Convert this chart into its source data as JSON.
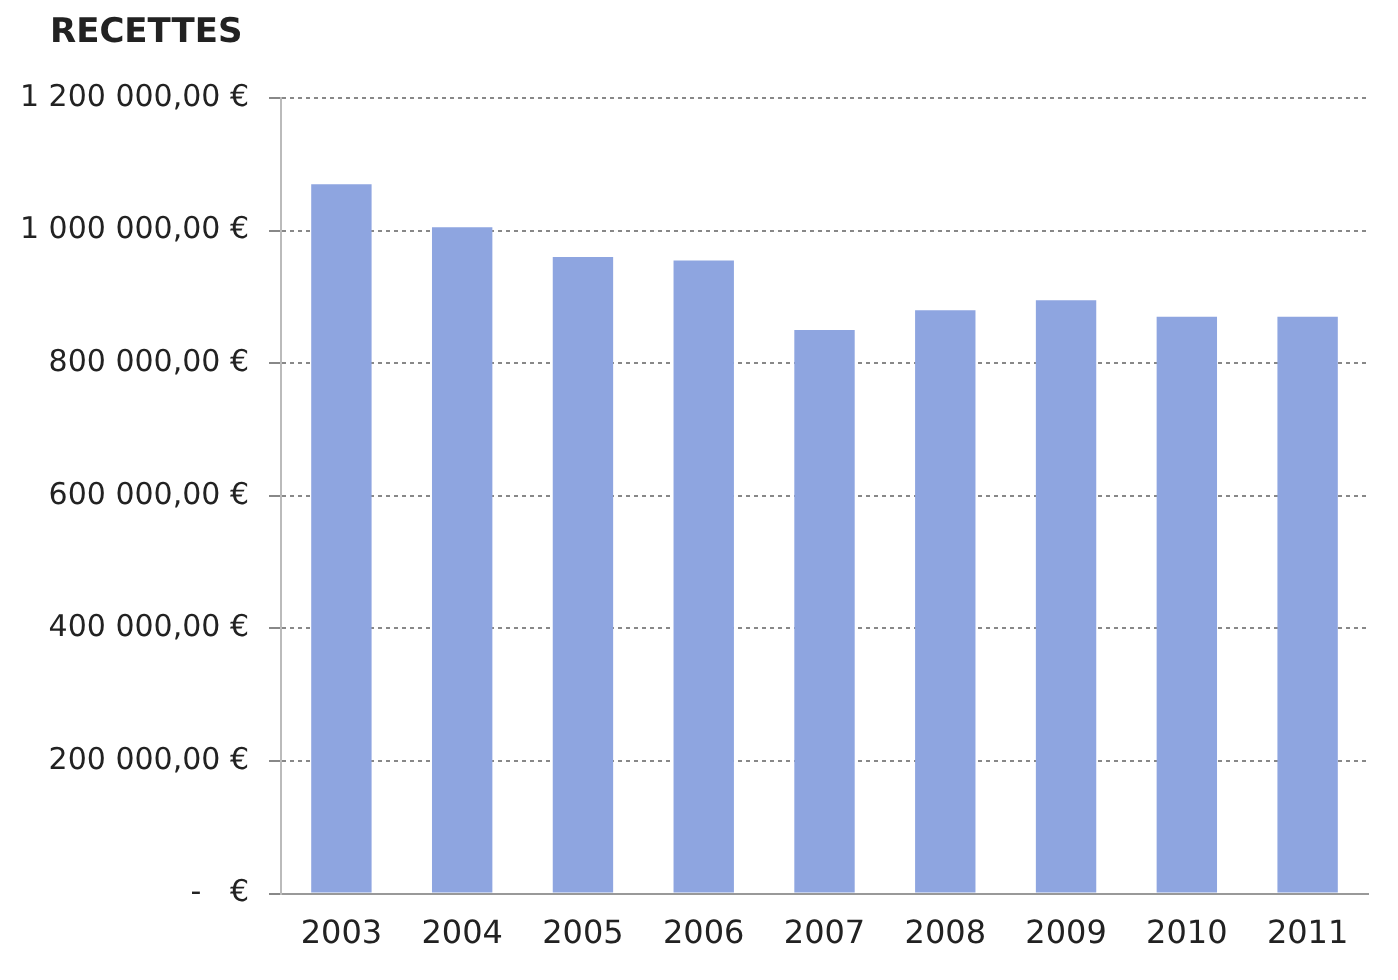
{
  "chart_data": {
    "type": "bar",
    "title": "RECETTES",
    "categories": [
      "2003",
      "2004",
      "2005",
      "2006",
      "2007",
      "2008",
      "2009",
      "2010",
      "2011"
    ],
    "values": [
      1070000,
      1005000,
      960000,
      955000,
      850000,
      880000,
      895000,
      870000,
      870000
    ],
    "color": "#8ea5e0",
    "ylim": [
      0,
      1200000
    ],
    "yticks": [
      {
        "value": 0,
        "label": "-   €"
      },
      {
        "value": 200000,
        "label": "200 000,00 €"
      },
      {
        "value": 400000,
        "label": "400 000,00 €"
      },
      {
        "value": 600000,
        "label": "600 000,00 €"
      },
      {
        "value": 800000,
        "label": "800 000,00 €"
      },
      {
        "value": 1000000,
        "label": "1 000 000,00 €"
      },
      {
        "value": 1200000,
        "label": "1 200 000,00 €"
      }
    ],
    "grid": "y",
    "legend": false
  }
}
